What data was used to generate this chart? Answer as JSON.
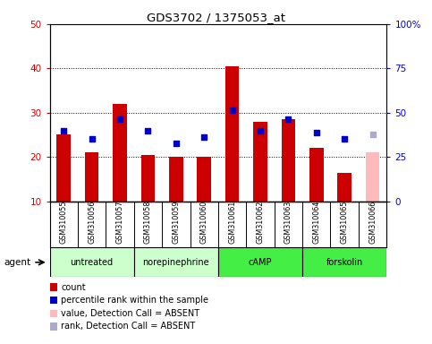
{
  "title": "GDS3702 / 1375053_at",
  "samples": [
    "GSM310055",
    "GSM310056",
    "GSM310057",
    "GSM310058",
    "GSM310059",
    "GSM310060",
    "GSM310061",
    "GSM310062",
    "GSM310063",
    "GSM310064",
    "GSM310065",
    "GSM310066"
  ],
  "bar_values": [
    25,
    21,
    32,
    20.5,
    20,
    20,
    40.5,
    28,
    28.5,
    22,
    16.5,
    21
  ],
  "bar_colors": [
    "#cc0000",
    "#cc0000",
    "#cc0000",
    "#cc0000",
    "#cc0000",
    "#cc0000",
    "#cc0000",
    "#cc0000",
    "#cc0000",
    "#cc0000",
    "#cc0000",
    "#ffbbbb"
  ],
  "dot_values": [
    26,
    24,
    28.5,
    26,
    23,
    24.5,
    30.5,
    26,
    28.5,
    25.5,
    24,
    25
  ],
  "dot_colors": [
    "#0000cc",
    "#0000cc",
    "#0000cc",
    "#0000cc",
    "#0000cc",
    "#0000cc",
    "#0000cc",
    "#0000cc",
    "#0000cc",
    "#0000cc",
    "#0000cc",
    "#aaaacc"
  ],
  "ylim_left": [
    10,
    50
  ],
  "ylim_right": [
    0,
    100
  ],
  "yticks_left": [
    10,
    20,
    30,
    40,
    50
  ],
  "yticks_right": [
    0,
    25,
    50,
    75,
    100
  ],
  "ytick_labels_right": [
    "0",
    "25",
    "50",
    "75",
    "100%"
  ],
  "groups": [
    {
      "label": "untreated",
      "start": 0,
      "end": 3,
      "color": "#ccffcc"
    },
    {
      "label": "norepinephrine",
      "start": 3,
      "end": 6,
      "color": "#ccffcc"
    },
    {
      "label": "cAMP",
      "start": 6,
      "end": 9,
      "color": "#44ee44"
    },
    {
      "label": "forskolin",
      "start": 9,
      "end": 12,
      "color": "#44ee44"
    }
  ],
  "legend_items": [
    {
      "color": "#cc0000",
      "label": "count"
    },
    {
      "color": "#0000cc",
      "label": "percentile rank within the sample"
    },
    {
      "color": "#ffbbbb",
      "label": "value, Detection Call = ABSENT"
    },
    {
      "color": "#aaaacc",
      "label": "rank, Detection Call = ABSENT"
    }
  ],
  "agent_label": "agent",
  "background_color": "#ffffff",
  "plot_bg_color": "#ffffff",
  "tick_color_left": "#cc0000",
  "tick_color_right": "#0000cc",
  "label_bg_color": "#cccccc",
  "bar_width": 0.5
}
